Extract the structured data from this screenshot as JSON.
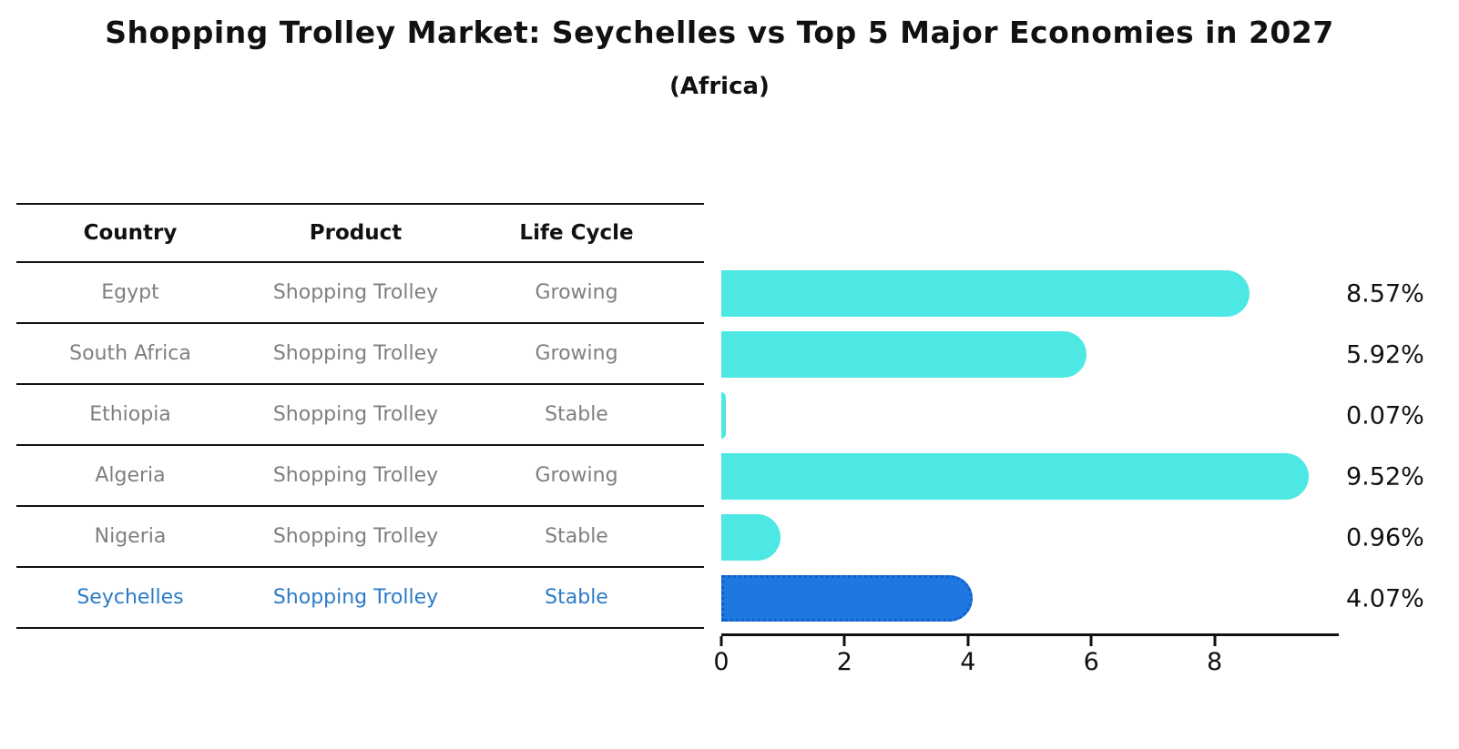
{
  "page": {
    "title": "Shopping Trolley Market: Seychelles vs Top 5 Major Economies in 2027",
    "subtitle": "(Africa)"
  },
  "table": {
    "headers": {
      "country": "Country",
      "product": "Product",
      "life_cycle": "Life Cycle"
    },
    "rows": [
      {
        "country": "Egypt",
        "product": "Shopping Trolley",
        "life_cycle": "Growing",
        "highlight": false
      },
      {
        "country": "South Africa",
        "product": "Shopping Trolley",
        "life_cycle": "Growing",
        "highlight": false
      },
      {
        "country": "Ethiopia",
        "product": "Shopping Trolley",
        "life_cycle": "Stable",
        "highlight": false
      },
      {
        "country": "Algeria",
        "product": "Shopping Trolley",
        "life_cycle": "Growing",
        "highlight": false
      },
      {
        "country": "Nigeria",
        "product": "Shopping Trolley",
        "life_cycle": "Stable",
        "highlight": false
      },
      {
        "country": "Seychelles",
        "product": "Shopping Trolley",
        "life_cycle": "Stable",
        "highlight": true
      }
    ]
  },
  "chart_data": {
    "type": "bar",
    "orientation": "horizontal",
    "title": "Shopping Trolley Market: Seychelles vs Top 5 Major Economies in 2027",
    "subtitle": "(Africa)",
    "categories": [
      "Egypt",
      "South Africa",
      "Ethiopia",
      "Algeria",
      "Nigeria",
      "Seychelles"
    ],
    "values": [
      8.57,
      5.92,
      0.07,
      9.52,
      0.96,
      4.07
    ],
    "value_labels": [
      "8.57%",
      "5.92%",
      "0.07%",
      "9.52%",
      "0.96%",
      "4.07%"
    ],
    "xlabel": "",
    "ylabel": "",
    "xlim": [
      0,
      10
    ],
    "xticks": [
      0,
      2,
      4,
      6,
      8
    ],
    "grid": false,
    "legend": false,
    "bar_color": "#4de8e3",
    "highlight_index": 5,
    "highlight_color": "#1f78e0",
    "highlight_border_style": "dotted",
    "highlight_text_color": "#2b7bc8"
  }
}
